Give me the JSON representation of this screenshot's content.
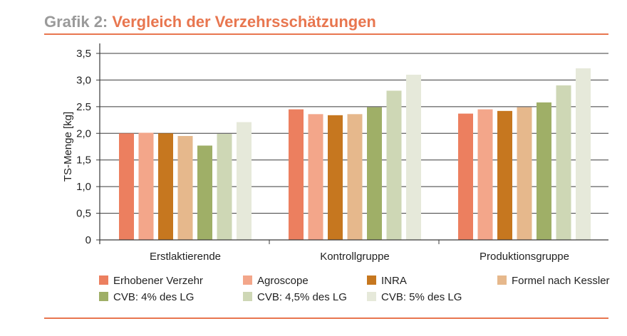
{
  "header": {
    "prefix": "Grafik 2:",
    "title": "Vergleich der Verzehrsschätzungen"
  },
  "chart_data": {
    "type": "bar",
    "title": "Vergleich der Verzehrsschätzungen",
    "xlabel": "",
    "ylabel": "TS-Menge [kg]",
    "ylim": [
      0,
      3.5
    ],
    "yticks": [
      0,
      0.5,
      1.0,
      1.5,
      2.0,
      2.5,
      3.0,
      3.5
    ],
    "ytick_labels": [
      "0",
      "0,5",
      "1,0",
      "1,5",
      "2,0",
      "2.5",
      "3,0",
      "3,5"
    ],
    "grid": true,
    "legend_position": "bottom",
    "categories": [
      "Erstlaktierende",
      "Kontrollgruppe",
      "Produktionsgruppe"
    ],
    "series": [
      {
        "name": "Erhobener Verzehr",
        "color": "#ec7f5f",
        "values": [
          2.0,
          2.45,
          2.37
        ]
      },
      {
        "name": "Agroscope",
        "color": "#f3a68a",
        "values": [
          2.01,
          2.36,
          2.45
        ]
      },
      {
        "name": "INRA",
        "color": "#c6771f",
        "values": [
          2.0,
          2.34,
          2.42
        ]
      },
      {
        "name": "Formel nach Kessler",
        "color": "#e6b88c",
        "values": [
          1.95,
          2.36,
          2.49
        ]
      },
      {
        "name": "CVB: 4% des LG",
        "color": "#9faf67",
        "values": [
          1.77,
          2.49,
          2.58
        ]
      },
      {
        "name": "CVB: 4,5% des LG",
        "color": "#ced7b5",
        "values": [
          1.99,
          2.8,
          2.9
        ]
      },
      {
        "name": "CVB: 5% des LG",
        "color": "#e6e9da",
        "values": [
          2.21,
          3.1,
          3.22
        ]
      }
    ]
  }
}
